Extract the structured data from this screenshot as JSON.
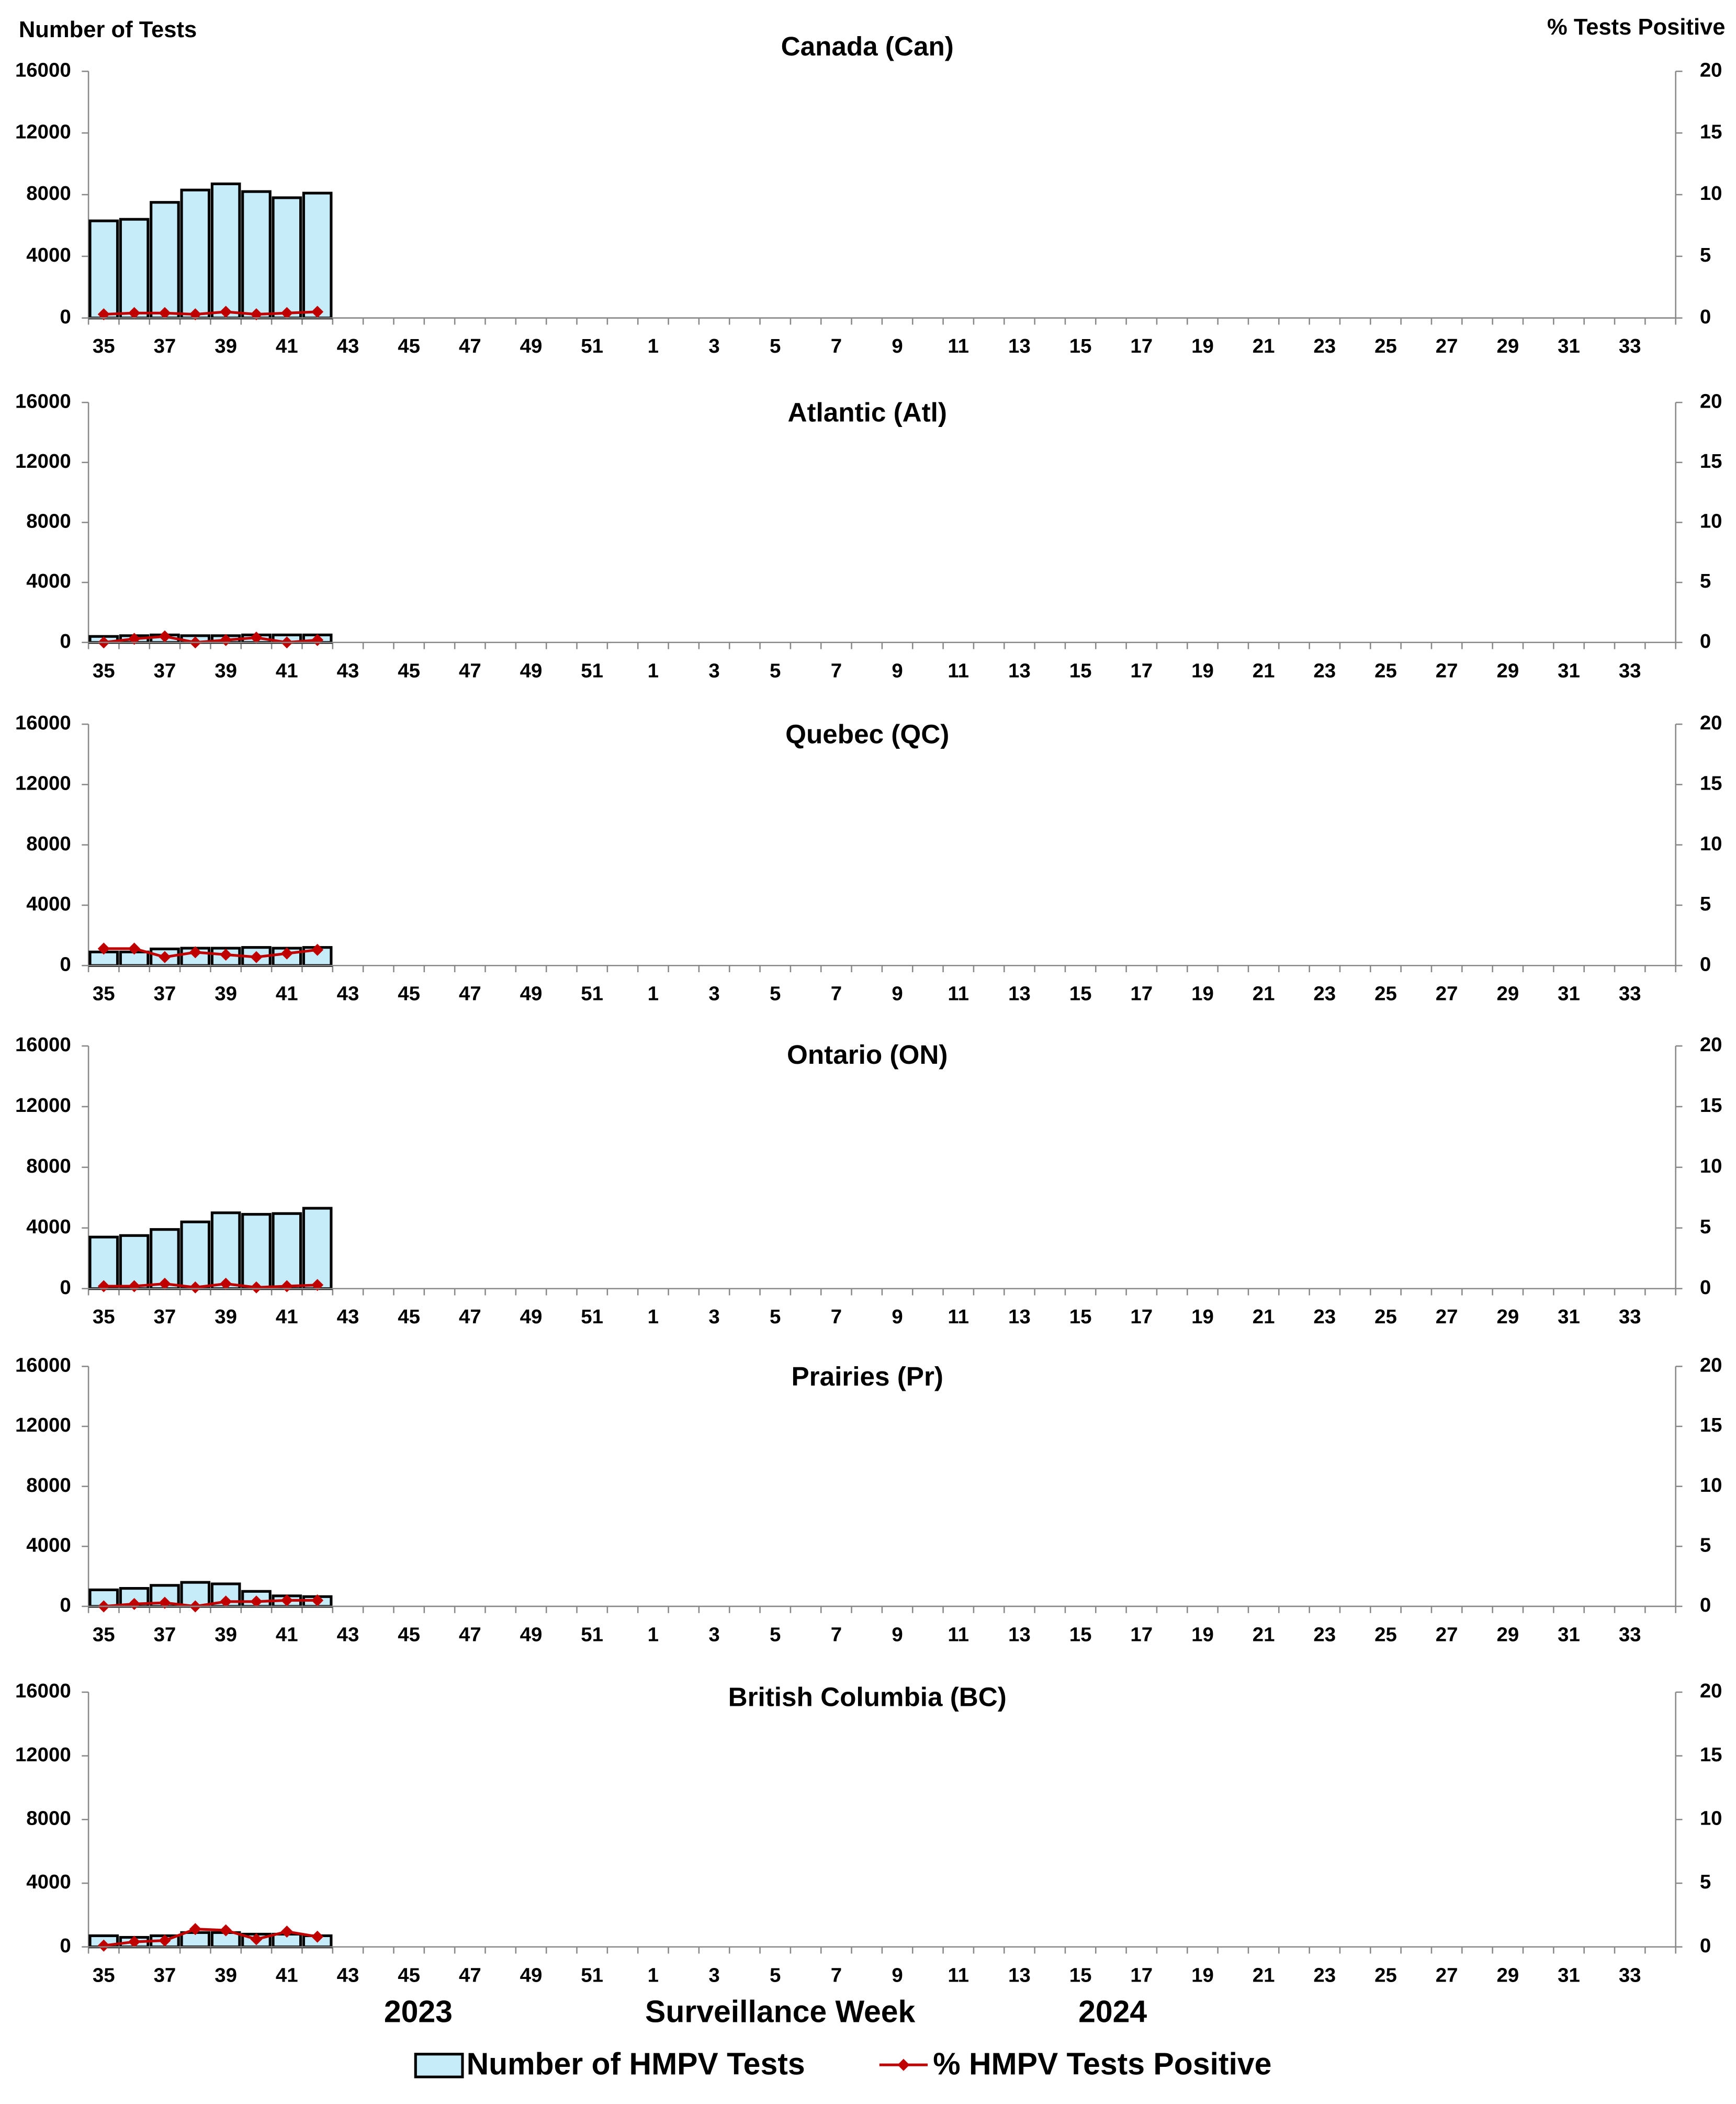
{
  "figure": {
    "y_label": "Number of Tests",
    "y2_label": "% Tests Positive",
    "x_label": "Surveillance Week",
    "years": [
      "2023",
      "2024"
    ]
  },
  "chart_data": [
    {
      "type": "bar",
      "title": "Canada (Can)",
      "categories": [
        35,
        null,
        37,
        null,
        39,
        null,
        41,
        null,
        43,
        null,
        45,
        null,
        47,
        null,
        49,
        null,
        51,
        null,
        1,
        null,
        3,
        null,
        5,
        null,
        7,
        null,
        9,
        null,
        11,
        null,
        13,
        null,
        15,
        null,
        17,
        null,
        19,
        null,
        21,
        null,
        23,
        null,
        25,
        null,
        27,
        null,
        29,
        null,
        31,
        null,
        33,
        null
      ],
      "series": [
        {
          "name": "Number of HMPV Tests",
          "color": "#c6ecfa",
          "values": [
            6300,
            6400,
            7500,
            8300,
            8700,
            8200,
            7800,
            8100,
            null,
            null,
            null,
            null,
            null,
            null,
            null,
            null,
            null,
            null,
            null,
            null,
            null,
            null,
            null,
            null,
            null,
            null,
            null,
            null,
            null,
            null,
            null,
            null,
            null,
            null,
            null,
            null,
            null,
            null,
            null,
            null,
            null,
            null,
            null,
            null,
            null,
            null,
            null,
            null,
            null,
            null,
            null,
            null
          ]
        },
        {
          "name": "% HMPV Tests Positive",
          "color": "#c00000",
          "axis": "y2",
          "values": [
            0.3,
            0.4,
            0.4,
            0.3,
            0.5,
            0.3,
            0.4,
            0.5,
            null,
            null,
            null,
            null,
            null,
            null,
            null,
            null,
            null,
            null,
            null,
            null,
            null,
            null,
            null,
            null,
            null,
            null,
            null,
            null,
            null,
            null,
            null,
            null,
            null,
            null,
            null,
            null,
            null,
            null,
            null,
            null,
            null,
            null,
            null,
            null,
            null,
            null,
            null,
            null,
            null,
            null,
            null,
            null
          ]
        }
      ],
      "ylim": [
        0,
        16000
      ],
      "yticks": [
        0,
        4000,
        8000,
        12000,
        16000
      ],
      "y2lim": [
        0,
        20
      ],
      "y2ticks": [
        0,
        5,
        10,
        15,
        20
      ]
    },
    {
      "type": "bar",
      "title": "Atlantic (Atl)",
      "categories": [
        35,
        null,
        37,
        null,
        39,
        null,
        41,
        null,
        43,
        null,
        45,
        null,
        47,
        null,
        49,
        null,
        51,
        null,
        1,
        null,
        3,
        null,
        5,
        null,
        7,
        null,
        9,
        null,
        11,
        null,
        13,
        null,
        15,
        null,
        17,
        null,
        19,
        null,
        21,
        null,
        23,
        null,
        25,
        null,
        27,
        null,
        29,
        null,
        31,
        null,
        33,
        null
      ],
      "series": [
        {
          "name": "Number of HMPV Tests",
          "color": "#c6ecfa",
          "values": [
            400,
            450,
            500,
            450,
            450,
            500,
            500,
            500,
            null,
            null,
            null,
            null,
            null,
            null,
            null,
            null,
            null,
            null,
            null,
            null,
            null,
            null,
            null,
            null,
            null,
            null,
            null,
            null,
            null,
            null,
            null,
            null,
            null,
            null,
            null,
            null,
            null,
            null,
            null,
            null,
            null,
            null,
            null,
            null,
            null,
            null,
            null,
            null,
            null,
            null,
            null,
            null
          ]
        },
        {
          "name": "% HMPV Tests Positive",
          "color": "#c00000",
          "axis": "y2",
          "values": [
            0,
            0.3,
            0.5,
            0,
            0.2,
            0.4,
            0,
            0.2,
            null,
            null,
            null,
            null,
            null,
            null,
            null,
            null,
            null,
            null,
            null,
            null,
            null,
            null,
            null,
            null,
            null,
            null,
            null,
            null,
            null,
            null,
            null,
            null,
            null,
            null,
            null,
            null,
            null,
            null,
            null,
            null,
            null,
            null,
            null,
            null,
            null,
            null,
            null,
            null,
            null,
            null,
            null,
            null
          ]
        }
      ],
      "ylim": [
        0,
        16000
      ],
      "yticks": [
        0,
        4000,
        8000,
        12000,
        16000
      ],
      "y2lim": [
        0,
        20
      ],
      "y2ticks": [
        0,
        5,
        10,
        15,
        20
      ]
    },
    {
      "type": "bar",
      "title": "Quebec (QC)",
      "categories": [
        35,
        null,
        37,
        null,
        39,
        null,
        41,
        null,
        43,
        null,
        45,
        null,
        47,
        null,
        49,
        null,
        51,
        null,
        1,
        null,
        3,
        null,
        5,
        null,
        7,
        null,
        9,
        null,
        11,
        null,
        13,
        null,
        15,
        null,
        17,
        null,
        19,
        null,
        21,
        null,
        23,
        null,
        25,
        null,
        27,
        null,
        29,
        null,
        31,
        null,
        33,
        null
      ],
      "series": [
        {
          "name": "Number of HMPV Tests",
          "color": "#c6ecfa",
          "values": [
            900,
            900,
            1100,
            1150,
            1150,
            1200,
            1150,
            1200,
            null,
            null,
            null,
            null,
            null,
            null,
            null,
            null,
            null,
            null,
            null,
            null,
            null,
            null,
            null,
            null,
            null,
            null,
            null,
            null,
            null,
            null,
            null,
            null,
            null,
            null,
            null,
            null,
            null,
            null,
            null,
            null,
            null,
            null,
            null,
            null,
            null,
            null,
            null,
            null,
            null,
            null,
            null,
            null
          ]
        },
        {
          "name": "% HMPV Tests Positive",
          "color": "#c00000",
          "axis": "y2",
          "values": [
            1.4,
            1.4,
            0.7,
            1.1,
            0.9,
            0.7,
            1.0,
            1.3,
            null,
            null,
            null,
            null,
            null,
            null,
            null,
            null,
            null,
            null,
            null,
            null,
            null,
            null,
            null,
            null,
            null,
            null,
            null,
            null,
            null,
            null,
            null,
            null,
            null,
            null,
            null,
            null,
            null,
            null,
            null,
            null,
            null,
            null,
            null,
            null,
            null,
            null,
            null,
            null,
            null,
            null,
            null,
            null
          ]
        }
      ],
      "ylim": [
        0,
        16000
      ],
      "yticks": [
        0,
        4000,
        8000,
        12000,
        16000
      ],
      "y2lim": [
        0,
        20
      ],
      "y2ticks": [
        0,
        5,
        10,
        15,
        20
      ]
    },
    {
      "type": "bar",
      "title": "Ontario (ON)",
      "categories": [
        35,
        null,
        37,
        null,
        39,
        null,
        41,
        null,
        43,
        null,
        45,
        null,
        47,
        null,
        49,
        null,
        51,
        null,
        1,
        null,
        3,
        null,
        5,
        null,
        7,
        null,
        9,
        null,
        11,
        null,
        13,
        null,
        15,
        null,
        17,
        null,
        19,
        null,
        21,
        null,
        23,
        null,
        25,
        null,
        27,
        null,
        29,
        null,
        31,
        null,
        33,
        null
      ],
      "series": [
        {
          "name": "Number of HMPV Tests",
          "color": "#c6ecfa",
          "values": [
            3400,
            3500,
            3900,
            4400,
            5000,
            4900,
            4950,
            5300,
            null,
            null,
            null,
            null,
            null,
            null,
            null,
            null,
            null,
            null,
            null,
            null,
            null,
            null,
            null,
            null,
            null,
            null,
            null,
            null,
            null,
            null,
            null,
            null,
            null,
            null,
            null,
            null,
            null,
            null,
            null,
            null,
            null,
            null,
            null,
            null,
            null,
            null,
            null,
            null,
            null,
            null,
            null,
            null
          ]
        },
        {
          "name": "% HMPV Tests Positive",
          "color": "#c00000",
          "axis": "y2",
          "values": [
            0.2,
            0.2,
            0.4,
            0.1,
            0.4,
            0.1,
            0.2,
            0.3,
            null,
            null,
            null,
            null,
            null,
            null,
            null,
            null,
            null,
            null,
            null,
            null,
            null,
            null,
            null,
            null,
            null,
            null,
            null,
            null,
            null,
            null,
            null,
            null,
            null,
            null,
            null,
            null,
            null,
            null,
            null,
            null,
            null,
            null,
            null,
            null,
            null,
            null,
            null,
            null,
            null,
            null,
            null,
            null
          ]
        }
      ],
      "ylim": [
        0,
        16000
      ],
      "yticks": [
        0,
        4000,
        8000,
        12000,
        16000
      ],
      "y2lim": [
        0,
        20
      ],
      "y2ticks": [
        0,
        5,
        10,
        15,
        20
      ]
    },
    {
      "type": "bar",
      "title": "Prairies (Pr)",
      "categories": [
        35,
        null,
        37,
        null,
        39,
        null,
        41,
        null,
        43,
        null,
        45,
        null,
        47,
        null,
        49,
        null,
        51,
        null,
        1,
        null,
        3,
        null,
        5,
        null,
        7,
        null,
        9,
        null,
        11,
        null,
        13,
        null,
        15,
        null,
        17,
        null,
        19,
        null,
        21,
        null,
        23,
        null,
        25,
        null,
        27,
        null,
        29,
        null,
        31,
        null,
        33,
        null
      ],
      "series": [
        {
          "name": "Number of HMPV Tests",
          "color": "#c6ecfa",
          "values": [
            1100,
            1200,
            1400,
            1600,
            1500,
            1000,
            700,
            650,
            null,
            null,
            null,
            null,
            null,
            null,
            null,
            null,
            null,
            null,
            null,
            null,
            null,
            null,
            null,
            null,
            null,
            null,
            null,
            null,
            null,
            null,
            null,
            null,
            null,
            null,
            null,
            null,
            null,
            null,
            null,
            null,
            null,
            null,
            null,
            null,
            null,
            null,
            null,
            null,
            null,
            null,
            null,
            null
          ]
        },
        {
          "name": "% HMPV Tests Positive",
          "color": "#c00000",
          "axis": "y2",
          "values": [
            0,
            0.2,
            0.3,
            0,
            0.4,
            0.4,
            0.5,
            0.5,
            null,
            null,
            null,
            null,
            null,
            null,
            null,
            null,
            null,
            null,
            null,
            null,
            null,
            null,
            null,
            null,
            null,
            null,
            null,
            null,
            null,
            null,
            null,
            null,
            null,
            null,
            null,
            null,
            null,
            null,
            null,
            null,
            null,
            null,
            null,
            null,
            null,
            null,
            null,
            null,
            null,
            null,
            null,
            null
          ]
        }
      ],
      "ylim": [
        0,
        16000
      ],
      "yticks": [
        0,
        4000,
        8000,
        12000,
        16000
      ],
      "y2lim": [
        0,
        20
      ],
      "y2ticks": [
        0,
        5,
        10,
        15,
        20
      ]
    },
    {
      "type": "bar",
      "title": "British Columbia (BC)",
      "categories": [
        35,
        null,
        37,
        null,
        39,
        null,
        41,
        null,
        43,
        null,
        45,
        null,
        47,
        null,
        49,
        null,
        51,
        null,
        1,
        null,
        3,
        null,
        5,
        null,
        7,
        null,
        9,
        null,
        11,
        null,
        13,
        null,
        15,
        null,
        17,
        null,
        19,
        null,
        21,
        null,
        23,
        null,
        25,
        null,
        27,
        null,
        29,
        null,
        31,
        null,
        33,
        null
      ],
      "series": [
        {
          "name": "Number of HMPV Tests",
          "color": "#c6ecfa",
          "values": [
            700,
            600,
            700,
            900,
            900,
            800,
            800,
            700,
            null,
            null,
            null,
            null,
            null,
            null,
            null,
            null,
            null,
            null,
            null,
            null,
            null,
            null,
            null,
            null,
            null,
            null,
            null,
            null,
            null,
            null,
            null,
            null,
            null,
            null,
            null,
            null,
            null,
            null,
            null,
            null,
            null,
            null,
            null,
            null,
            null,
            null,
            null,
            null,
            null,
            null,
            null,
            null
          ]
        },
        {
          "name": "% HMPV Tests Positive",
          "color": "#c00000",
          "axis": "y2",
          "values": [
            0.1,
            0.4,
            0.5,
            1.4,
            1.3,
            0.6,
            1.2,
            0.8,
            null,
            null,
            null,
            null,
            null,
            null,
            null,
            null,
            null,
            null,
            null,
            null,
            null,
            null,
            null,
            null,
            null,
            null,
            null,
            null,
            null,
            null,
            null,
            null,
            null,
            null,
            null,
            null,
            null,
            null,
            null,
            null,
            null,
            null,
            null,
            null,
            null,
            null,
            null,
            null,
            null,
            null,
            null,
            null
          ]
        }
      ],
      "ylim": [
        0,
        16000
      ],
      "yticks": [
        0,
        4000,
        8000,
        12000,
        16000
      ],
      "y2lim": [
        0,
        20
      ],
      "y2ticks": [
        0,
        5,
        10,
        15,
        20
      ]
    }
  ]
}
